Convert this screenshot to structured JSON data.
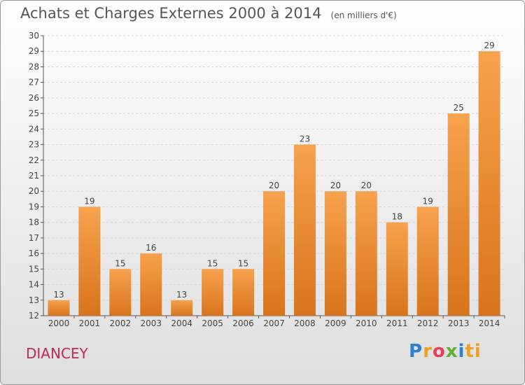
{
  "header": {
    "title": "Achats et Charges Externes 2000 à 2014",
    "unit": "(en milliers d'€)"
  },
  "footer": {
    "commune": "DIANCEY",
    "logo": [
      "P",
      "r",
      "o",
      "x",
      "i",
      "ti"
    ]
  },
  "chart_data": {
    "type": "bar",
    "categories": [
      "2000",
      "2001",
      "2002",
      "2003",
      "2004",
      "2005",
      "2006",
      "2007",
      "2008",
      "2009",
      "2010",
      "2011",
      "2012",
      "2013",
      "2014"
    ],
    "values": [
      13,
      19,
      15,
      16,
      13,
      15,
      15,
      20,
      23,
      20,
      20,
      18,
      19,
      25,
      29
    ],
    "ylim": [
      12,
      30
    ],
    "yticks": [
      12,
      13,
      14,
      15,
      16,
      17,
      18,
      19,
      20,
      21,
      22,
      23,
      24,
      25,
      26,
      27,
      28,
      29,
      30
    ],
    "grid": "horizontal-dashed",
    "colors": {
      "bar_top": "#f7a24e",
      "bar_bottom": "#d8741c",
      "grid": "#d8d8d8",
      "axis": "#555555"
    }
  }
}
